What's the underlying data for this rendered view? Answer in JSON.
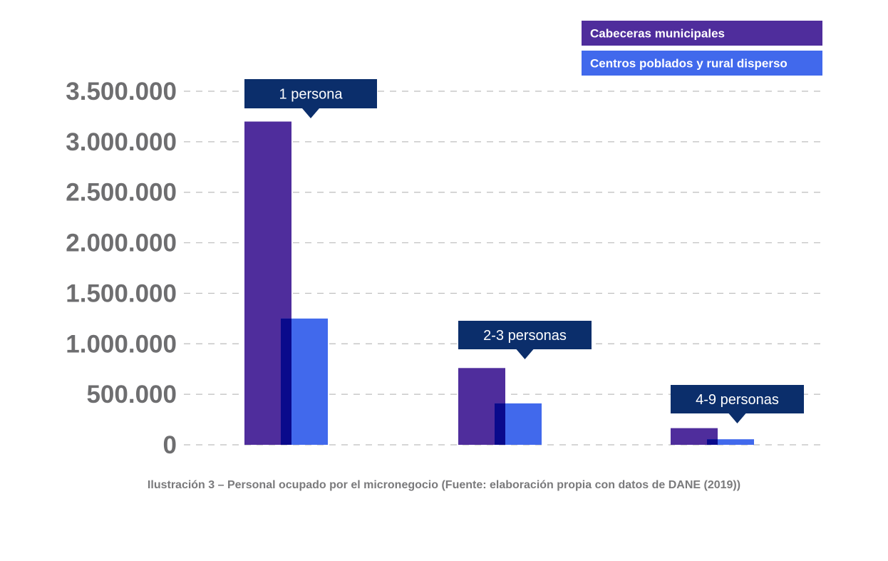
{
  "chart_data": {
    "type": "bar",
    "categories": [
      "1 persona",
      "2-3 personas",
      "4-9 personas"
    ],
    "series": [
      {
        "name": "Cabeceras municipales",
        "color": "#4f2d9c",
        "values": [
          3200000,
          760000,
          165000
        ]
      },
      {
        "name": "Centros poblados y rural disperso",
        "color": "#4169ec",
        "values": [
          1250000,
          410000,
          55000
        ]
      }
    ],
    "overlap_color": "#0a0a8c",
    "label_color": "#0b2e6b",
    "yticks": [
      0,
      500000,
      1000000,
      1500000,
      2000000,
      2500000,
      3000000,
      3500000
    ],
    "ytick_labels": [
      "0",
      "500.000",
      "1.000.000",
      "1.500.000",
      "2.000.000",
      "2.500.000",
      "3.000.000",
      "3.500.000"
    ],
    "ylim": [
      0,
      3500000
    ],
    "grid": true,
    "legend_position": "top-right",
    "title": "",
    "xlabel": "",
    "ylabel": ""
  },
  "caption": "Ilustración 3 – Personal ocupado por el micronegocio (Fuente: elaboración propia con datos de DANE (2019))"
}
